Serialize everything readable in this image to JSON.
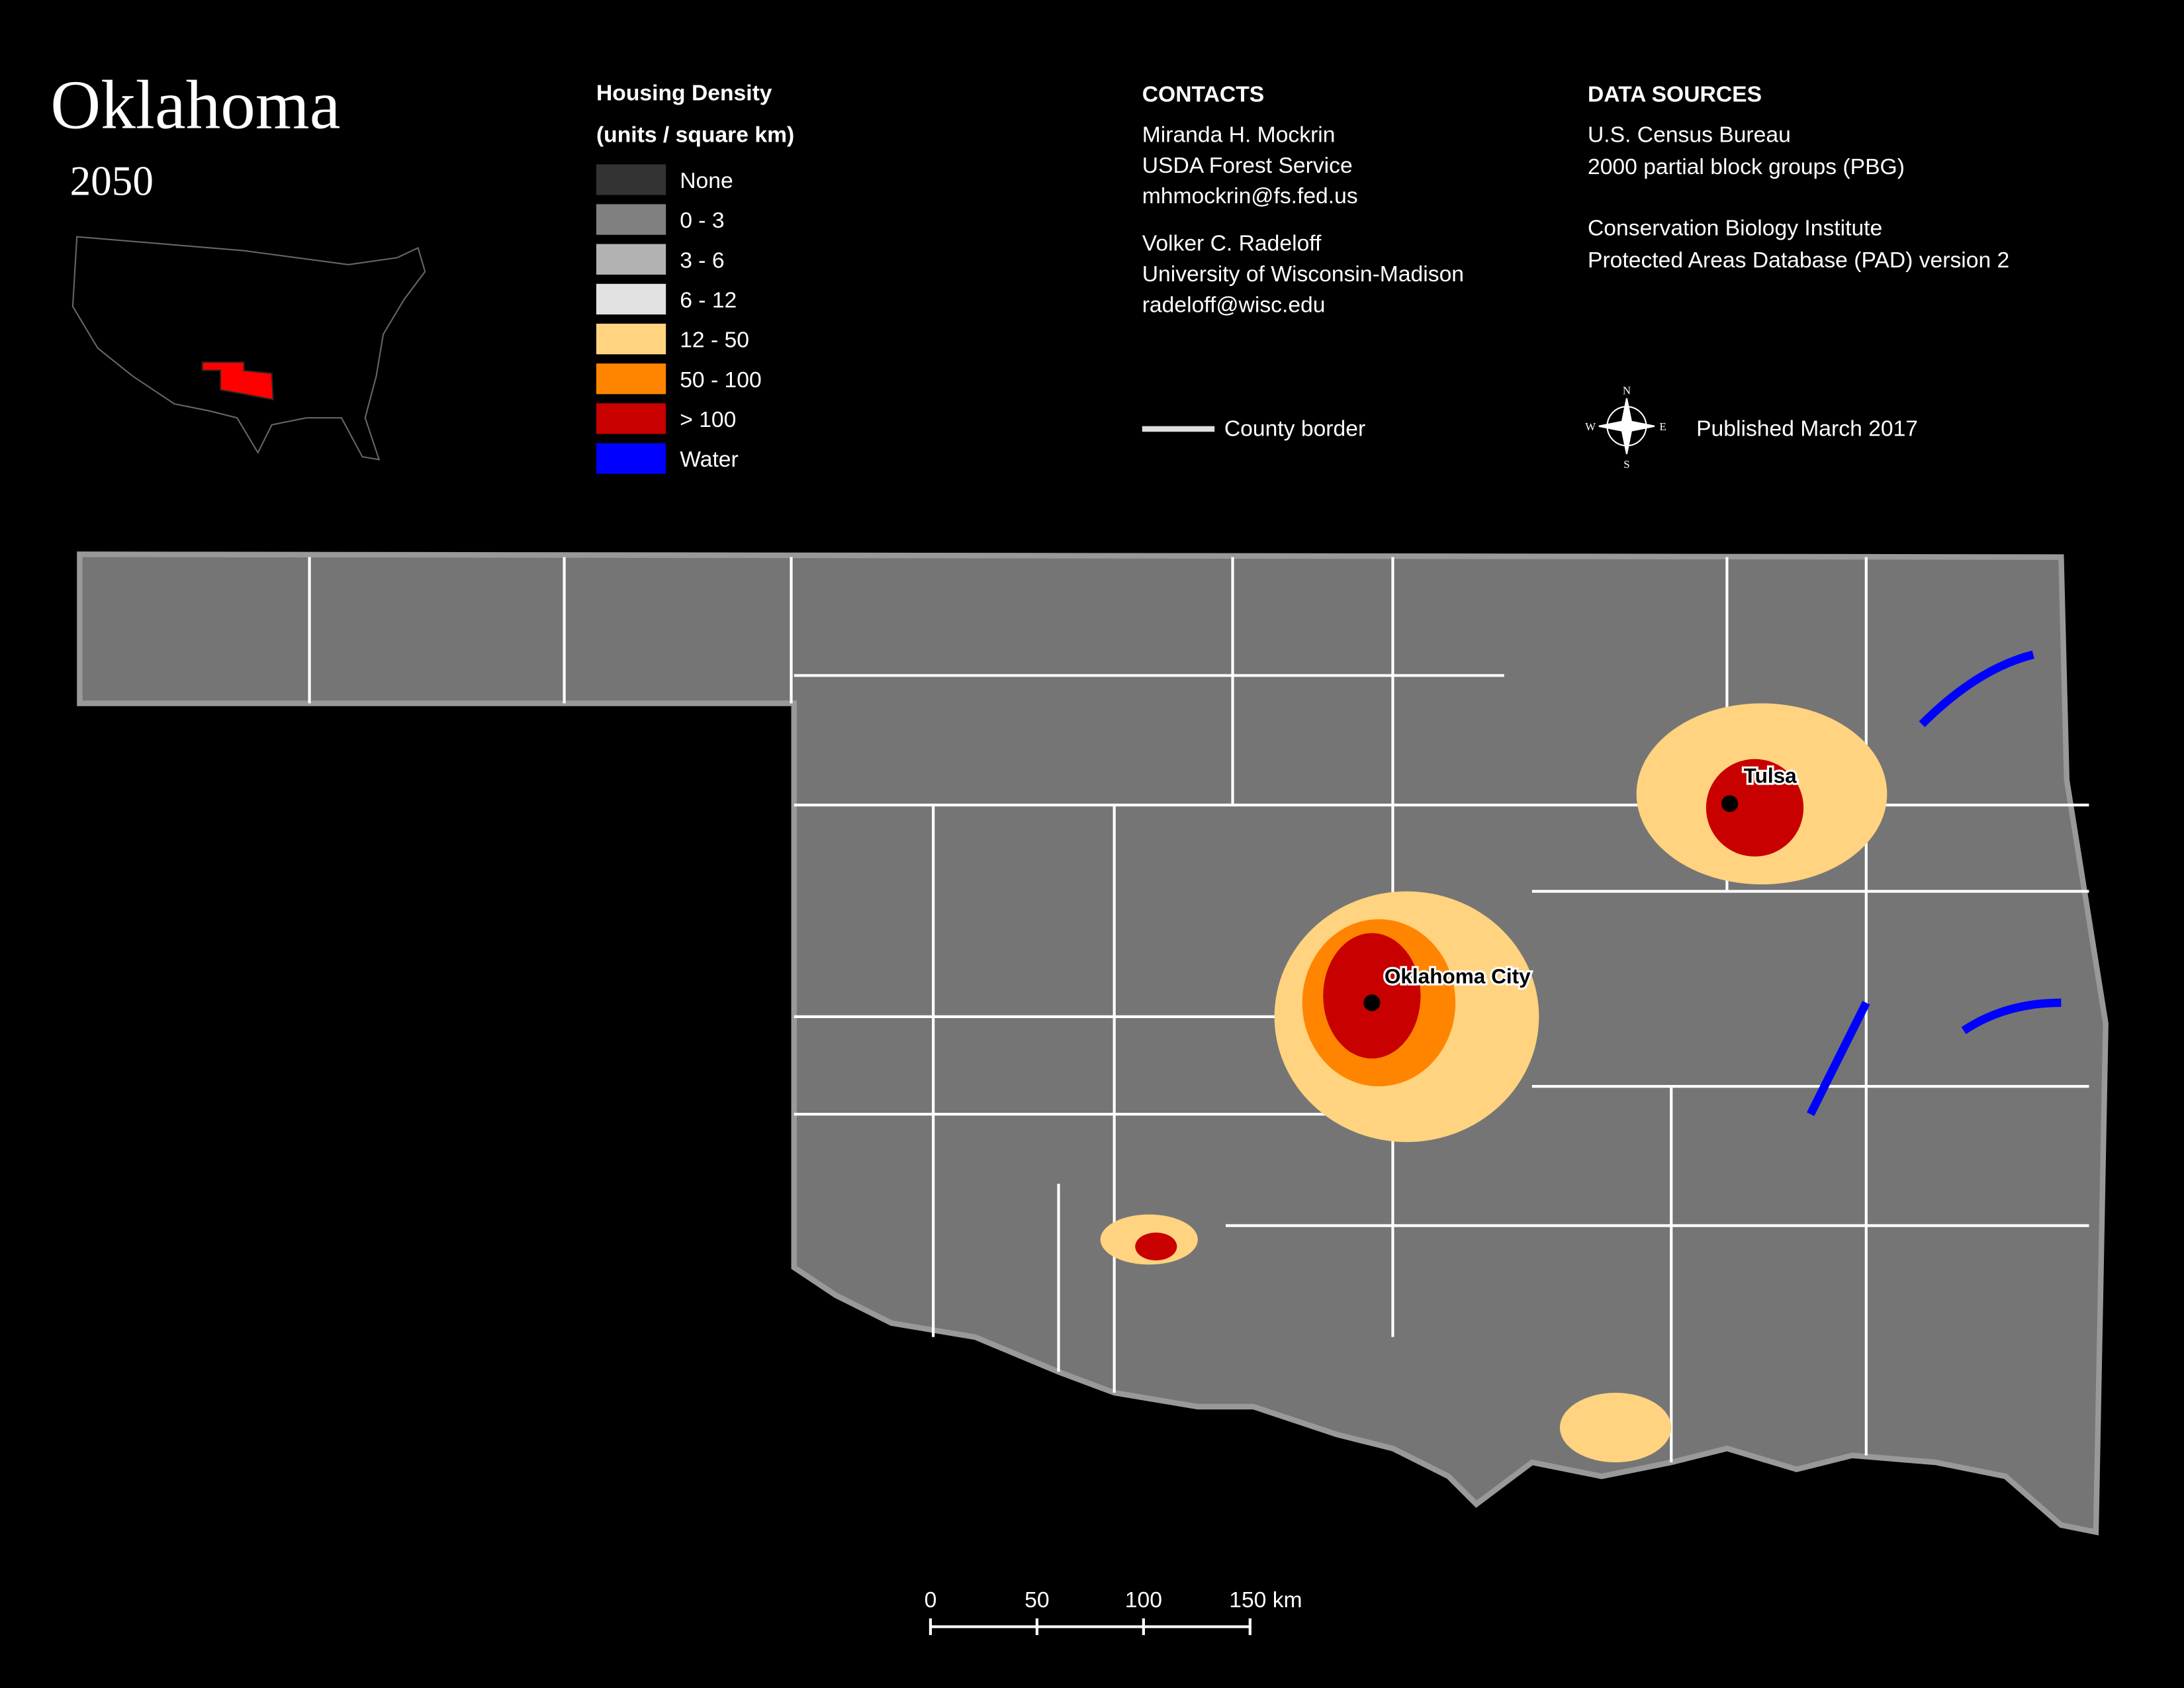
{
  "header": {
    "title": "Oklahoma",
    "subtitle": "2050"
  },
  "legend": {
    "title_line1": "Housing Density",
    "title_line2": "(units / square km)",
    "items": [
      {
        "label": "None",
        "color": "#333333"
      },
      {
        "label": "0 - 3",
        "color": "#808080"
      },
      {
        "label": "3 - 6",
        "color": "#b2b2b2"
      },
      {
        "label": "6 - 12",
        "color": "#e1e1e1"
      },
      {
        "label": "12 - 50",
        "color": "#ffd37f"
      },
      {
        "label": "50 - 100",
        "color": "#ff8500"
      },
      {
        "label": "> 100",
        "color": "#c80000"
      },
      {
        "label": "Water",
        "color": "#0000ff"
      }
    ]
  },
  "contacts": {
    "heading": "CONTACTS",
    "people": [
      [
        "Miranda H. Mockrin",
        "USDA Forest Service",
        "mhmockrin@fs.fed.us"
      ],
      [
        "Volker C. Radeloff",
        "University of Wisconsin-Madison",
        "radeloff@wisc.edu"
      ]
    ],
    "county_border": "County border"
  },
  "data_sources": {
    "heading": "DATA SOURCES",
    "lines": [
      "U.S. Census Bureau",
      "2000 partial block groups (PBG)",
      "Conservation Biology Institute",
      "Protected Areas Database (PAD) version 2"
    ],
    "published": "Published March 2017",
    "compass": [
      "N",
      "S",
      "E",
      "W"
    ]
  },
  "map": {
    "cities": [
      "Tulsa",
      "Oklahoma City"
    ]
  },
  "scale_bar": {
    "labels": [
      "0",
      "50",
      "100",
      "150 km"
    ]
  }
}
